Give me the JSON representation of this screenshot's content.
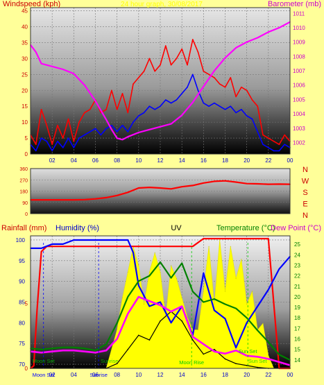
{
  "colors": {
    "background": "#ffff99",
    "wind_avg": "#0000ff",
    "wind_gust": "#ff0000",
    "barometer": "#ff00ff",
    "direction": "#ff0000",
    "rainfall": "#ff0000",
    "humidity": "#0000ff",
    "uv": "#ffff00",
    "temperature": "#008000",
    "dew_point": "#ff00ff",
    "solar": "#000000"
  },
  "chart_data": [
    {
      "type": "line",
      "panel": "wind",
      "title": "24 hour graph, 30/08/2017",
      "ylabel_left": "Windspeed (kph)",
      "ylabel_right": "Barometer (mb)",
      "x_ticks": [
        "02",
        "04",
        "06",
        "08",
        "10",
        "12",
        "14",
        "16",
        "18",
        "20",
        "22",
        "00"
      ],
      "x_range": [
        0,
        24
      ],
      "ylim_left": [
        0,
        46
      ],
      "yticks_left": [
        "0",
        "5",
        "10",
        "15",
        "20",
        "25",
        "30",
        "35",
        "40",
        "45"
      ],
      "ylim_right": [
        1001.2,
        1011.4
      ],
      "yticks_right": [
        "1002",
        "1003",
        "1004",
        "1005",
        "1006",
        "1007",
        "1008",
        "1009",
        "1010",
        "1011"
      ],
      "grid": true,
      "series": [
        {
          "name": "Windspeed (kph)",
          "role": "wind_gust",
          "axis": "left",
          "x": [
            0,
            0.5,
            1,
            1.5,
            2,
            2.5,
            3,
            3.5,
            4,
            4.5,
            5,
            5.5,
            6,
            6.5,
            7,
            7.5,
            8,
            8.5,
            9,
            9.5,
            10,
            10.5,
            11,
            11.5,
            12,
            12.5,
            13,
            13.5,
            14,
            14.5,
            15,
            15.5,
            16,
            16.5,
            17,
            17.5,
            18,
            18.5,
            19,
            19.5,
            20,
            20.5,
            21,
            21.5,
            22,
            22.5,
            23,
            23.5,
            24
          ],
          "values": [
            6,
            3,
            14,
            9,
            3,
            9,
            5,
            11,
            4,
            10,
            13,
            14,
            17,
            13,
            14,
            20,
            14,
            19,
            13,
            22,
            24,
            26,
            30,
            26,
            28,
            34,
            28,
            30,
            33,
            28,
            36,
            32,
            26,
            25,
            24,
            22,
            21,
            24,
            18,
            21,
            20,
            17,
            15,
            6,
            5,
            4,
            3,
            6,
            4
          ]
        },
        {
          "name": "Windspeed average",
          "role": "wind_avg",
          "axis": "left",
          "x": [
            0,
            0.5,
            1,
            1.5,
            2,
            2.5,
            3,
            3.5,
            4,
            4.5,
            5,
            5.5,
            6,
            6.5,
            7,
            7.5,
            8,
            8.5,
            9,
            9.5,
            10,
            10.5,
            11,
            11.5,
            12,
            12.5,
            13,
            13.5,
            14,
            14.5,
            15,
            15.5,
            16,
            16.5,
            17,
            17.5,
            18,
            18.5,
            19,
            19.5,
            20,
            20.5,
            21,
            21.5,
            22,
            22.5,
            23,
            23.5,
            24
          ],
          "values": [
            3,
            1,
            5,
            4,
            1,
            4,
            2,
            5,
            2,
            5,
            6,
            7,
            8,
            6,
            8,
            9,
            7,
            9,
            7,
            10,
            12,
            13,
            15,
            14,
            15,
            17,
            16,
            17,
            19,
            21,
            25,
            20,
            16,
            15,
            16,
            15,
            14,
            15,
            13,
            14,
            12,
            11,
            7,
            3,
            2,
            1,
            1,
            3,
            2
          ]
        },
        {
          "name": "Barometer (mb)",
          "role": "barometer",
          "axis": "right",
          "x": [
            0,
            0.5,
            1,
            2,
            3,
            4,
            5,
            6,
            7,
            7.5,
            8,
            8.5,
            9,
            10,
            11,
            12,
            13,
            14,
            15,
            16,
            17,
            18,
            19,
            20,
            21,
            22,
            23,
            24
          ],
          "values": [
            1008.8,
            1008.3,
            1007.5,
            1007.3,
            1007.1,
            1006.8,
            1006.0,
            1004.9,
            1003.6,
            1002.9,
            1002.3,
            1002.2,
            1002.4,
            1002.7,
            1002.9,
            1003.1,
            1003.3,
            1003.9,
            1004.8,
            1005.9,
            1007.0,
            1007.9,
            1008.6,
            1009.0,
            1009.3,
            1009.7,
            1010.0,
            1010.4
          ]
        }
      ]
    },
    {
      "type": "line",
      "panel": "direction",
      "x_range": [
        0,
        24
      ],
      "ylim": [
        0,
        360
      ],
      "yticks": [
        "0",
        "90",
        "180",
        "270",
        "360"
      ],
      "compass": [
        "N",
        "W",
        "S",
        "E",
        "N"
      ],
      "grid": true,
      "series": [
        {
          "role": "direction",
          "x": [
            0,
            1,
            2,
            3,
            4,
            5,
            6,
            7,
            8,
            9,
            10,
            11,
            12,
            13,
            14,
            15,
            16,
            17,
            18,
            19,
            20,
            21,
            22,
            23,
            24
          ],
          "values": [
            110,
            110,
            110,
            110,
            110,
            112,
            118,
            128,
            145,
            170,
            205,
            210,
            205,
            198,
            215,
            225,
            245,
            258,
            262,
            252,
            240,
            238,
            235,
            236,
            235
          ]
        }
      ]
    },
    {
      "type": "line",
      "panel": "weather",
      "labels": {
        "rainfall": "Rainfall (mm)",
        "humidity": "Humidity (%)",
        "uv": "UV",
        "temperature": "Temperature (°C)",
        "dew_point": "Dew Point (°C)"
      },
      "x_range": [
        0,
        24
      ],
      "x_ticks": [
        "02",
        "04",
        "06",
        "08",
        "10",
        "12",
        "14",
        "16",
        "18",
        "20",
        "22",
        "00"
      ],
      "ylim_humidity": [
        69,
        101
      ],
      "yticks_humidity": [
        "70",
        "75",
        "80",
        "85",
        "90",
        "95",
        "100"
      ],
      "ylim_rain": [
        0,
        10
      ],
      "yticks_rain": [
        "0",
        "5"
      ],
      "ylim_temp": [
        13.2,
        25.8
      ],
      "yticks_temp": [
        "14",
        "15",
        "16",
        "17",
        "18",
        "19",
        "20",
        "21",
        "22",
        "23",
        "24",
        "25"
      ],
      "grid": true,
      "events": [
        {
          "label": "Moon Set",
          "x": 1.2,
          "color": "#0000ff",
          "row": "bottom"
        },
        {
          "label": "Sunrise",
          "x": 6.3,
          "color": "#0000ff",
          "row": "bottom"
        },
        {
          "label": "Sun Set",
          "x": 20.1,
          "color": "#00cc00",
          "row": "middle"
        },
        {
          "label": "Moon Rise",
          "x": 14.9,
          "color": "#00cc00",
          "row": "top"
        }
      ],
      "ghost_labels": [
        {
          "label": "Moon Set",
          "x": 1.2,
          "color": "#00cc00"
        },
        {
          "label": "Sunrise",
          "x": 7.3,
          "color": "#00cc00"
        },
        {
          "label": "Sun Set",
          "x": 21.0,
          "color": "#00cc00"
        }
      ],
      "series": [
        {
          "role": "rainfall",
          "x": [
            0,
            0.3,
            0.6,
            1,
            1.5,
            2,
            7,
            10,
            15,
            16,
            17,
            18,
            22,
            23,
            24
          ],
          "values": [
            0,
            0.2,
            4.5,
            9.0,
            9.4,
            9.4,
            9.4,
            9.4,
            9.4,
            10.0,
            10.0,
            10.0,
            10.0,
            0.0,
            0.0
          ]
        },
        {
          "role": "humidity",
          "x": [
            0,
            0.5,
            1,
            2,
            3,
            4,
            6,
            7,
            8,
            9,
            9.5,
            10,
            11,
            12,
            13,
            14,
            15,
            16,
            17,
            18,
            19,
            20,
            21,
            22,
            23,
            24
          ],
          "values": [
            98,
            98,
            98,
            99,
            99,
            100,
            100,
            100,
            100,
            100,
            97,
            89,
            84,
            85,
            80,
            84,
            77,
            92,
            83,
            81,
            74,
            80,
            84,
            88,
            93,
            96
          ]
        },
        {
          "role": "uv",
          "x": [
            0,
            7,
            7.5,
            8,
            8.5,
            9,
            9.5,
            10,
            10.5,
            11,
            11.5,
            12,
            12.5,
            13,
            13.5,
            14,
            14.5,
            15,
            15.5,
            16,
            16.5,
            17,
            17.5,
            18,
            18.5,
            19,
            19.5,
            20,
            20.5,
            21,
            21.5,
            22,
            22.5,
            24
          ],
          "values": [
            0,
            0,
            1.5,
            3,
            5.5,
            7.5,
            9.5,
            8,
            5,
            7.5,
            9,
            7.5,
            4,
            8,
            7,
            5.5,
            4,
            3,
            3,
            6,
            9.5,
            5,
            10,
            6,
            9.5,
            7,
            8.5,
            5,
            6,
            3,
            3.5,
            1,
            0,
            0
          ]
        },
        {
          "role": "temperature",
          "x": [
            0,
            1,
            2,
            3,
            4,
            5,
            6,
            7,
            8,
            9,
            10,
            11,
            12,
            13,
            14,
            15,
            16,
            17,
            18,
            19,
            20,
            21,
            22,
            23,
            24
          ],
          "values": [
            15.1,
            15.0,
            15.1,
            15.2,
            15.2,
            15.1,
            14.9,
            15.5,
            17.5,
            20.0,
            21.5,
            22.0,
            23.3,
            21.8,
            23.2,
            20.5,
            19.5,
            19.8,
            19.3,
            18.9,
            18.0,
            16.8,
            15.7,
            14.5,
            14.0
          ]
        },
        {
          "role": "dew_point",
          "x": [
            0,
            1,
            2,
            3,
            4,
            5,
            6,
            7,
            8,
            9,
            10,
            11,
            12,
            13,
            14,
            15,
            16,
            17,
            18,
            19,
            20,
            21,
            22,
            23,
            24
          ],
          "values": [
            14.8,
            14.7,
            14.8,
            14.9,
            14.9,
            14.8,
            14.7,
            14.9,
            16.0,
            18.4,
            20.0,
            19.6,
            19.2,
            18.6,
            19.1,
            16.2,
            15.5,
            14.8,
            14.6,
            14.9,
            14.4,
            14.3,
            14.1,
            13.8,
            13.5
          ]
        },
        {
          "role": "solar",
          "x": [
            0,
            7,
            8,
            9,
            10,
            11,
            12,
            13,
            14,
            15,
            16,
            17,
            18,
            19,
            20,
            21,
            22,
            23,
            24
          ],
          "values": [
            0,
            0,
            0.5,
            2,
            3.5,
            3,
            5,
            6,
            5,
            3,
            1.5,
            2,
            1,
            0.5,
            0.3,
            0.1,
            0,
            0,
            0
          ]
        }
      ]
    }
  ]
}
